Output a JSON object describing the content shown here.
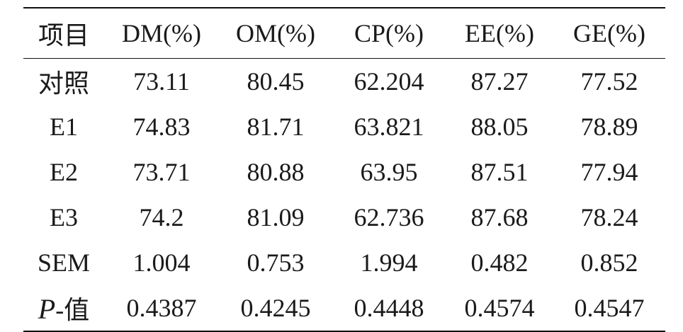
{
  "table": {
    "headers": [
      "项目",
      "DM(%)",
      "OM(%)",
      "CP(%)",
      "EE(%)",
      "GE(%)"
    ],
    "rows": [
      [
        "对照",
        "73.11",
        "80.45",
        "62.204",
        "87.27",
        "77.52"
      ],
      [
        "E1",
        "74.83",
        "81.71",
        "63.821",
        "88.05",
        "78.89"
      ],
      [
        "E2",
        "73.71",
        "80.88",
        "63.95",
        "87.51",
        "77.94"
      ],
      [
        "E3",
        "74.2",
        "81.09",
        "62.736",
        "87.68",
        "78.24"
      ],
      [
        "SEM",
        "1.004",
        "0.753",
        "1.994",
        "0.482",
        "0.852"
      ]
    ],
    "last_row": {
      "label_p": "P",
      "label_suffix": "-值",
      "values": [
        "0.4387",
        "0.4245",
        "0.4448",
        "0.4574",
        "0.4547"
      ]
    }
  }
}
